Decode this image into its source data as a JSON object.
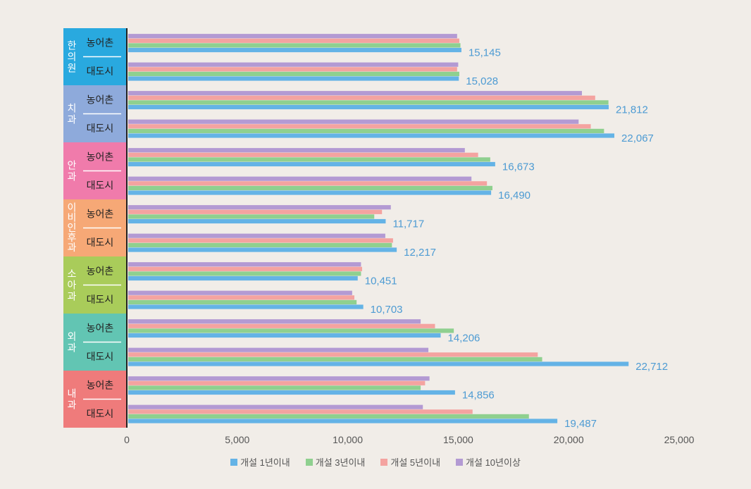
{
  "chart_data": {
    "type": "bar",
    "orientation": "horizontal",
    "xlim": [
      0,
      25000
    ],
    "x_ticks": [
      "0",
      "5,000",
      "10,000",
      "15,000",
      "20,000",
      "25,000"
    ],
    "grid": false,
    "legend_position": "bottom",
    "groups": [
      {
        "name": "한의원",
        "color": "#29a9df",
        "rows": [
          {
            "label": "농어촌",
            "values": [
              15145,
              15100,
              15050,
              14950
            ],
            "total_label": "15,145"
          },
          {
            "label": "대도시",
            "values": [
              15028,
              15050,
              14950,
              15000
            ],
            "total_label": "15,028"
          }
        ]
      },
      {
        "name": "치과",
        "color": "#8eaadb",
        "rows": [
          {
            "label": "농어촌",
            "values": [
              21812,
              21800,
              21200,
              20600
            ],
            "total_label": "21,812"
          },
          {
            "label": "대도시",
            "values": [
              22067,
              21600,
              21000,
              20450
            ],
            "total_label": "22,067"
          }
        ]
      },
      {
        "name": "안과",
        "color": "#f07bab",
        "rows": [
          {
            "label": "농어촌",
            "values": [
              16673,
              16450,
              15900,
              15300
            ],
            "total_label": "16,673"
          },
          {
            "label": "대도시",
            "values": [
              16490,
              16550,
              16300,
              15600
            ],
            "total_label": "16,490"
          }
        ]
      },
      {
        "name": "이비인후과",
        "color": "#f6a876",
        "rows": [
          {
            "label": "농어촌",
            "values": [
              11717,
              11200,
              11550,
              11950
            ],
            "total_label": "11,717"
          },
          {
            "label": "대도시",
            "values": [
              12217,
              12000,
              12050,
              11700
            ],
            "total_label": "12,217"
          }
        ]
      },
      {
        "name": "소아과",
        "color": "#a9cc5a",
        "rows": [
          {
            "label": "농어촌",
            "values": [
              10451,
              10600,
              10650,
              10600
            ],
            "total_label": "10,451"
          },
          {
            "label": "대도시",
            "values": [
              10703,
              10400,
              10300,
              10200
            ],
            "total_label": "10,703"
          }
        ]
      },
      {
        "name": "외과",
        "color": "#62c5b3",
        "rows": [
          {
            "label": "농어촌",
            "values": [
              14206,
              14800,
              13950,
              13300
            ],
            "total_label": "14,206"
          },
          {
            "label": "대도시",
            "values": [
              22712,
              18800,
              18600,
              13650
            ],
            "total_label": "22,712"
          }
        ]
      },
      {
        "name": "내과",
        "color": "#ef7b7b",
        "rows": [
          {
            "label": "농어촌",
            "values": [
              14856,
              13300,
              13500,
              13700
            ],
            "total_label": "14,856"
          },
          {
            "label": "대도시",
            "values": [
              19487,
              18200,
              15650,
              13400
            ],
            "total_label": "19,487"
          }
        ]
      }
    ],
    "series": [
      {
        "name": "개설 1년이내",
        "color": "#64b3e6"
      },
      {
        "name": "개설 3년이내",
        "color": "#8fd08f"
      },
      {
        "name": "개설 5년이내",
        "color": "#f4a3a0"
      },
      {
        "name": "개설 10년이상",
        "color": "#b39ad3"
      }
    ]
  }
}
